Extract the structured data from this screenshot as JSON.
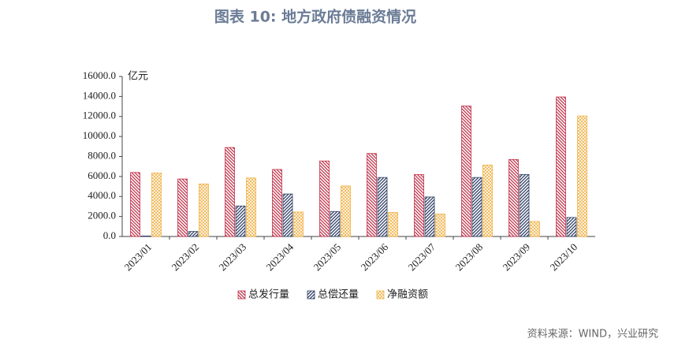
{
  "chart_data": {
    "type": "bar",
    "title": "图表 10: 地方政府债融资情况",
    "y_label": "亿元",
    "source": "资料来源：WIND，兴业研究",
    "categories": [
      "2023/01",
      "2023/02",
      "2023/03",
      "2023/04",
      "2023/05",
      "2023/06",
      "2023/07",
      "2023/08",
      "2023/09",
      "2023/10"
    ],
    "series": [
      {
        "name": "总发行量",
        "color": "#c0334a",
        "hatch": "backslash",
        "values": [
          6400,
          5750,
          8900,
          6700,
          7550,
          8300,
          6200,
          13050,
          7700,
          13950
        ]
      },
      {
        "name": "总偿还量",
        "color": "#2e3f64",
        "hatch": "slash",
        "values": [
          50,
          500,
          3050,
          4250,
          2500,
          5900,
          3950,
          5900,
          6200,
          1900
        ]
      },
      {
        "name": "净融资额",
        "color": "#f0b247",
        "hatch": "cross",
        "values": [
          6350,
          5250,
          5850,
          2450,
          5050,
          2400,
          2250,
          7150,
          1500,
          12050
        ]
      }
    ],
    "ylim": [
      0,
      16000
    ],
    "yticks": [
      {
        "value": 0,
        "label": "0.0"
      },
      {
        "value": 2000,
        "label": "2000.0"
      },
      {
        "value": 4000,
        "label": "4000.0"
      },
      {
        "value": 6000,
        "label": "6000.0"
      },
      {
        "value": 8000,
        "label": "8000.0"
      },
      {
        "value": 10000,
        "label": "10000.0"
      },
      {
        "value": 12000,
        "label": "12000.0"
      },
      {
        "value": 14000,
        "label": "14000.0"
      },
      {
        "value": 16000,
        "label": "16000.0"
      }
    ],
    "legend": "bottom"
  }
}
